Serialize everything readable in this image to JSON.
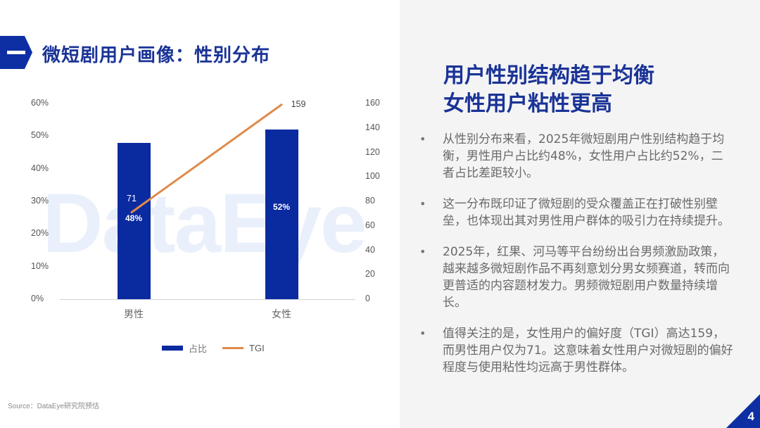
{
  "header": {
    "section_marker": "一",
    "title": "微短剧用户画像：性别分布"
  },
  "chart_data": {
    "type": "bar+line",
    "title": "",
    "categories": [
      "男性",
      "女性"
    ],
    "series": [
      {
        "name": "占比",
        "type": "bar",
        "axis": "left",
        "values": [
          48,
          52
        ],
        "unit": "%",
        "labels": [
          "48%",
          "52%"
        ],
        "color": "#0a2aa0"
      },
      {
        "name": "TGI",
        "type": "line",
        "axis": "right",
        "values": [
          71,
          159
        ],
        "labels": [
          "71",
          "159"
        ],
        "color": "#e08a4a"
      }
    ],
    "y_left": {
      "ticks": [
        "0%",
        "10%",
        "20%",
        "30%",
        "40%",
        "50%",
        "60%"
      ],
      "range": [
        0,
        60
      ]
    },
    "y_right": {
      "ticks": [
        "0",
        "20",
        "40",
        "60",
        "80",
        "100",
        "120",
        "140",
        "160"
      ],
      "range": [
        0,
        160
      ]
    },
    "legend": {
      "position": "bottom",
      "entries": [
        "占比",
        "TGI"
      ]
    },
    "grid": false,
    "watermark": "DataEye"
  },
  "source": "Source：DataEye研究院预估",
  "insight": {
    "headline_lines": [
      "用户性别结构趋于均衡",
      "女性用户粘性更高"
    ],
    "bullets": [
      "从性别分布来看，2025年微短剧用户性别结构趋于均衡，男性用户占比约48%，女性用户占比约52%，二者占比差距较小。",
      "这一分布既印证了微短剧的受众覆盖正在打破性别壁垒，也体现出其对男性用户群体的吸引力在持续提升。",
      "2025年，红果、河马等平台纷纷出台男频激励政策，越来越多微短剧作品不再刻意划分男女频赛道，转而向更普适的内容题材发力。男频微短剧用户数量持续增长。",
      "值得关注的是，女性用户的偏好度（TGI）高达159，而男性用户仅为71。这意味着女性用户对微短剧的偏好程度与使用粘性均远高于男性群体。"
    ],
    "bullet_marker": "•"
  },
  "page_number": "4",
  "colors": {
    "brand_blue": "#0d2fa3",
    "title_blue": "#1a3396",
    "tgi_orange": "#e08a4a",
    "panel_bg": "#f4f4f5"
  }
}
